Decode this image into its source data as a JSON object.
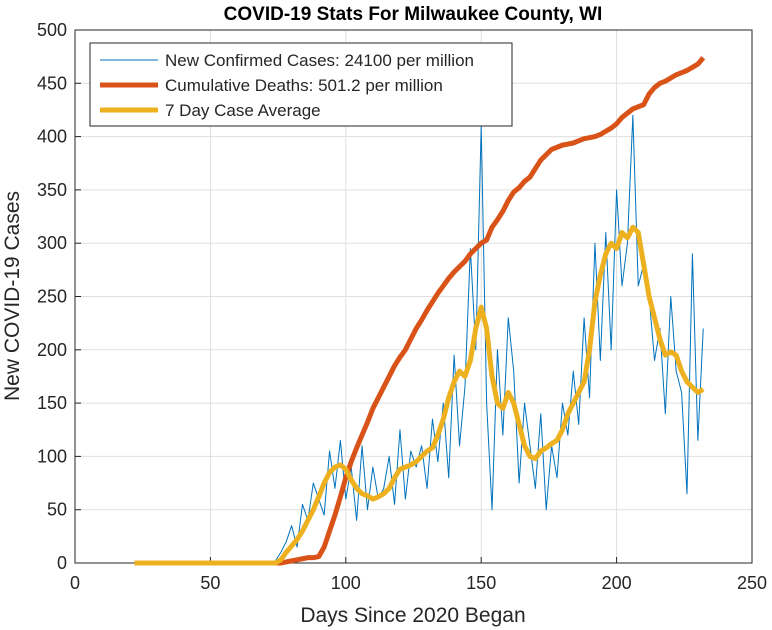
{
  "chart_data": {
    "type": "line",
    "title": "COVID-19 Stats For Milwaukee County, WI",
    "xlabel": "Days Since 2020 Began",
    "ylabel": "New COVID-19 Cases",
    "xlim": [
      0,
      250
    ],
    "xticks": [
      0,
      50,
      100,
      150,
      200,
      250
    ],
    "ylim": [
      0,
      500
    ],
    "yticks": [
      0,
      50,
      100,
      150,
      200,
      250,
      300,
      350,
      400,
      450,
      500
    ],
    "grid": true,
    "legend": "upper left",
    "x": [
      22,
      24,
      26,
      28,
      30,
      32,
      34,
      36,
      38,
      40,
      42,
      44,
      46,
      48,
      50,
      52,
      54,
      56,
      58,
      60,
      62,
      64,
      66,
      68,
      70,
      72,
      74,
      76,
      78,
      80,
      82,
      84,
      86,
      88,
      90,
      92,
      94,
      96,
      98,
      100,
      102,
      104,
      106,
      108,
      110,
      112,
      114,
      116,
      118,
      120,
      122,
      124,
      126,
      128,
      130,
      132,
      134,
      136,
      138,
      140,
      142,
      144,
      146,
      148,
      150,
      152,
      154,
      156,
      158,
      160,
      162,
      164,
      166,
      168,
      170,
      172,
      174,
      176,
      178,
      180,
      182,
      184,
      186,
      188,
      190,
      192,
      194,
      196,
      198,
      200,
      202,
      204,
      206,
      208,
      210,
      212,
      214,
      216,
      218,
      220,
      222,
      224,
      226,
      228,
      230,
      232
    ],
    "series": [
      {
        "name": "New Confirmed Cases: 24100 per million",
        "color": "#0072BD",
        "width": 1,
        "values": [
          0,
          0,
          0,
          0,
          0,
          0,
          0,
          0,
          0,
          0,
          0,
          0,
          0,
          0,
          0,
          0,
          0,
          0,
          0,
          0,
          0,
          0,
          0,
          0,
          0,
          0,
          2,
          10,
          20,
          35,
          15,
          55,
          40,
          75,
          60,
          45,
          105,
          70,
          115,
          60,
          90,
          40,
          110,
          50,
          90,
          60,
          70,
          100,
          55,
          125,
          60,
          105,
          90,
          110,
          70,
          135,
          95,
          150,
          80,
          195,
          110,
          165,
          295,
          200,
          410,
          150,
          50,
          200,
          120,
          230,
          180,
          75,
          150,
          110,
          70,
          140,
          50,
          110,
          80,
          150,
          120,
          180,
          130,
          230,
          155,
          300,
          190,
          310,
          200,
          350,
          260,
          300,
          420,
          260,
          280,
          250,
          190,
          220,
          140,
          250,
          180,
          160,
          65,
          290,
          115,
          220
        ]
      },
      {
        "name": "Cumulative Deaths: 501.2 per million",
        "color": "#D95319",
        "width": 5,
        "values": [
          0,
          0,
          0,
          0,
          0,
          0,
          0,
          0,
          0,
          0,
          0,
          0,
          0,
          0,
          0,
          0,
          0,
          0,
          0,
          0,
          0,
          0,
          0,
          0,
          0,
          0,
          0,
          0,
          1,
          2,
          3,
          4,
          5,
          5,
          6,
          15,
          30,
          45,
          62,
          80,
          95,
          108,
          120,
          132,
          145,
          155,
          165,
          175,
          185,
          193,
          200,
          210,
          220,
          228,
          237,
          245,
          253,
          260,
          267,
          273,
          278,
          283,
          290,
          295,
          300,
          303,
          315,
          322,
          330,
          340,
          348,
          352,
          358,
          362,
          370,
          378,
          383,
          388,
          390,
          392,
          393,
          394,
          396,
          398,
          399,
          400,
          402,
          405,
          408,
          412,
          418,
          422,
          426,
          428,
          430,
          440,
          446,
          450,
          452,
          455,
          458,
          460,
          462,
          465,
          468,
          474
        ]
      },
      {
        "name": "7 Day Case Average",
        "color": "#EDB120",
        "width": 5,
        "values": [
          0,
          0,
          0,
          0,
          0,
          0,
          0,
          0,
          0,
          0,
          0,
          0,
          0,
          0,
          0,
          0,
          0,
          0,
          0,
          0,
          0,
          0,
          0,
          0,
          0,
          0,
          0,
          3,
          10,
          16,
          22,
          30,
          40,
          50,
          62,
          75,
          85,
          90,
          92,
          88,
          78,
          70,
          65,
          63,
          60,
          62,
          65,
          70,
          80,
          88,
          90,
          92,
          95,
          100,
          105,
          108,
          120,
          135,
          155,
          170,
          180,
          175,
          190,
          220,
          240,
          220,
          175,
          150,
          145,
          160,
          150,
          130,
          110,
          100,
          98,
          105,
          108,
          112,
          115,
          125,
          140,
          150,
          160,
          170,
          200,
          245,
          270,
          290,
          300,
          295,
          310,
          305,
          315,
          310,
          280,
          250,
          230,
          210,
          195,
          198,
          195,
          180,
          170,
          165,
          160,
          163
        ]
      }
    ]
  }
}
